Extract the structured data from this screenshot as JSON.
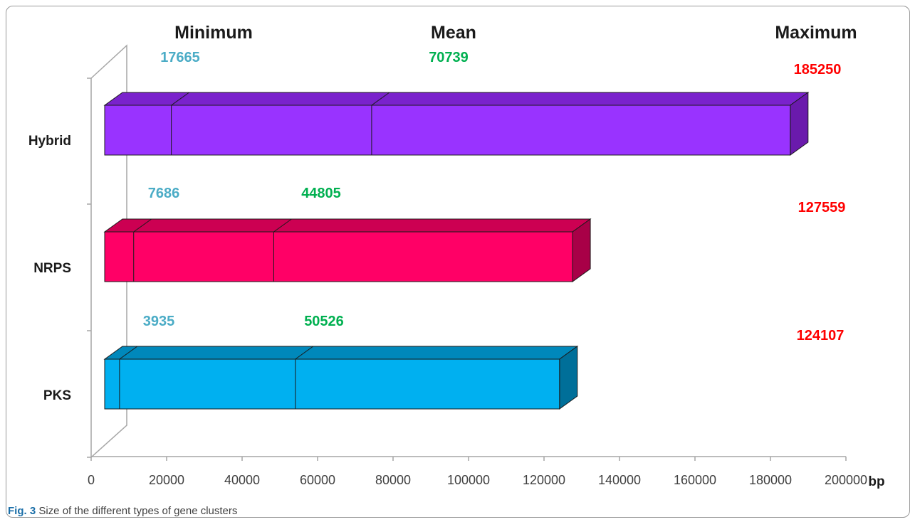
{
  "figure": {
    "caption_label": "Fig. 3",
    "caption_text": "Size of the different types of gene clusters"
  },
  "chart_data": {
    "type": "bar",
    "orientation": "horizontal",
    "style": "3d-stacked",
    "categories": [
      "Hybrid",
      "NRPS",
      "PKS"
    ],
    "column_headers": [
      "Minimum",
      "Mean",
      "Maximum"
    ],
    "series": [
      {
        "name": "Minimum",
        "values": [
          17665,
          7686,
          3935
        ]
      },
      {
        "name": "Mean",
        "values": [
          70739,
          44805,
          50526
        ]
      },
      {
        "name": "Maximum",
        "values": [
          185250,
          127559,
          124107
        ]
      }
    ],
    "x_ticks": [
      "0",
      "20000",
      "40000",
      "60000",
      "80000",
      "100000",
      "120000",
      "140000",
      "160000",
      "180000",
      "200000"
    ],
    "xlabel": "bp",
    "ylabel": "",
    "xlim": [
      0,
      200000
    ],
    "grid": false,
    "colors": {
      "Hybrid": {
        "front": "#9933ff",
        "top": "#7a22cc",
        "side": "#6a1aac"
      },
      "NRPS": {
        "front": "#ff0066",
        "top": "#cc0052",
        "side": "#a80047"
      },
      "PKS": {
        "front": "#00b0f0",
        "top": "#0088bb",
        "side": "#006f99"
      },
      "label_min": "#4bacc6",
      "label_mean": "#00b050",
      "label_max": "#ff0000",
      "axis": "#a6a6a6"
    }
  }
}
